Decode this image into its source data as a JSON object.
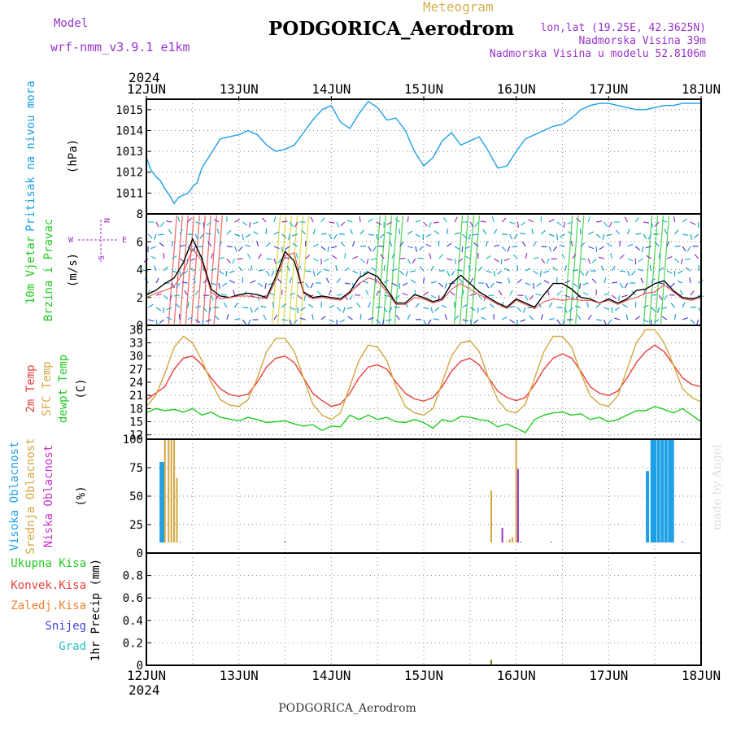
{
  "header": {
    "model_label": "Model",
    "model_name": "wrf-nmm_v3.9.1  e1km",
    "title_small": "Meteogram",
    "station": "PODGORICA_Aerodrom",
    "coords": "lon,lat (19.25E, 42.3625N)",
    "elevation": "Nadmorska Visina 39m",
    "model_elevation": "Nadmorska Visina u modelu 52.8106m",
    "year": "2024"
  },
  "footer": {
    "station": "PODGORICA_Aerodrom",
    "watermark": "made by Angel"
  },
  "colors": {
    "pressure": "#1ea0e6",
    "red": "#e8403c",
    "orange": "#d4a640",
    "green": "#22cc22",
    "magenta": "#cc33cc",
    "purple": "#9933cc",
    "blue": "#4444dd",
    "cyan": "#22c0c0",
    "orange_label": "#f08030",
    "olive": "#808000",
    "grid": "#888888"
  },
  "x_axis": {
    "ticks": [
      "12JUN",
      "13JUN",
      "14JUN",
      "15JUN",
      "16JUN",
      "17JUN",
      "18JUN"
    ],
    "year": "2024"
  },
  "chart_data": [
    {
      "type": "line",
      "panel": "pressure",
      "ylabel": [
        "Pritisak na nivou mora",
        "(hPa)"
      ],
      "ylim": [
        1010,
        1015.5
      ],
      "yticks": [
        1011,
        1012,
        1013,
        1014,
        1015
      ],
      "grid": true,
      "series": [
        {
          "key": "mslp",
          "x": [
            0,
            0.05,
            0.1,
            0.15,
            0.2,
            0.25,
            0.3,
            0.35,
            0.4,
            0.45,
            0.5,
            0.55,
            0.6,
            0.7,
            0.8,
            0.9,
            1.0,
            1.1,
            1.2,
            1.3,
            1.4,
            1.5,
            1.6,
            1.7,
            1.8,
            1.9,
            2.0,
            2.1,
            2.2,
            2.3,
            2.4,
            2.5,
            2.6,
            2.7,
            2.8,
            2.9,
            3.0,
            3.1,
            3.2,
            3.3,
            3.4,
            3.5,
            3.6,
            3.7,
            3.8,
            3.9,
            4.0,
            4.1,
            4.2,
            4.3,
            4.4,
            4.5,
            4.6,
            4.7,
            4.8,
            4.9,
            5.0,
            5.1,
            5.2,
            5.3,
            5.4,
            5.5,
            5.6,
            5.7,
            5.8,
            5.9,
            6.0
          ],
          "values": [
            1012.7,
            1012.1,
            1011.8,
            1011.6,
            1011.2,
            1010.9,
            1010.5,
            1010.8,
            1010.9,
            1011.0,
            1011.3,
            1011.5,
            1012.2,
            1012.9,
            1013.6,
            1013.7,
            1013.8,
            1014.0,
            1013.8,
            1013.3,
            1013.0,
            1013.1,
            1013.3,
            1013.9,
            1014.5,
            1015.0,
            1015.2,
            1014.4,
            1014.1,
            1014.8,
            1015.4,
            1015.1,
            1014.5,
            1014.6,
            1014.0,
            1013.0,
            1012.3,
            1012.7,
            1013.5,
            1013.9,
            1013.3,
            1013.5,
            1013.7,
            1013.0,
            1012.2,
            1012.3,
            1013.0,
            1013.6,
            1013.8,
            1014.0,
            1014.2,
            1014.3,
            1014.6,
            1015.0,
            1015.2,
            1015.3,
            1015.3,
            1015.2,
            1015.1,
            1015.0,
            1015.0,
            1015.1,
            1015.2,
            1015.2,
            1015.3,
            1015.3,
            1015.3
          ]
        }
      ]
    },
    {
      "type": "line",
      "panel": "wind",
      "ylabel": [
        "10m Vjetar",
        "Brzina i Pravac",
        "(m/s)"
      ],
      "compass": [
        "N",
        "W",
        "E",
        "S"
      ],
      "ylim": [
        0,
        8
      ],
      "yticks": [
        0,
        2,
        4,
        6,
        8
      ],
      "grid": true,
      "series": [
        {
          "key": "speed",
          "x": [
            0,
            0.1,
            0.2,
            0.3,
            0.4,
            0.5,
            0.6,
            0.7,
            0.8,
            0.9,
            1.0,
            1.1,
            1.2,
            1.3,
            1.4,
            1.5,
            1.6,
            1.7,
            1.8,
            1.9,
            2.0,
            2.1,
            2.2,
            2.3,
            2.4,
            2.5,
            2.6,
            2.7,
            2.8,
            2.9,
            3.0,
            3.1,
            3.2,
            3.3,
            3.4,
            3.5,
            3.6,
            3.7,
            3.8,
            3.9,
            4.0,
            4.1,
            4.2,
            4.3,
            4.4,
            4.5,
            4.6,
            4.7,
            4.8,
            4.9,
            5.0,
            5.1,
            5.2,
            5.3,
            5.4,
            5.5,
            5.6,
            5.7,
            5.8,
            5.9,
            6.0
          ],
          "values": [
            2.2,
            2.5,
            3.0,
            3.4,
            4.5,
            6.2,
            4.8,
            2.6,
            2.1,
            2.0,
            2.2,
            2.3,
            2.2,
            2.0,
            3.5,
            5.3,
            4.6,
            2.4,
            2.0,
            2.1,
            2.0,
            1.9,
            2.4,
            3.4,
            3.8,
            3.5,
            2.6,
            1.6,
            1.6,
            2.2,
            2.0,
            1.7,
            1.9,
            3.0,
            3.6,
            3.0,
            2.4,
            2.0,
            1.6,
            1.3,
            1.9,
            1.6,
            1.3,
            2.2,
            3.0,
            3.0,
            2.6,
            2.0,
            1.9,
            1.6,
            1.9,
            1.6,
            1.9,
            2.5,
            2.6,
            3.0,
            3.2,
            2.5,
            2.0,
            1.9,
            2.1
          ]
        },
        {
          "key": "gust",
          "x": [
            0,
            0.1,
            0.2,
            0.3,
            0.4,
            0.5,
            0.6,
            0.7,
            0.8,
            0.9,
            1.0,
            1.1,
            1.2,
            1.3,
            1.4,
            1.5,
            1.6,
            1.7,
            1.8,
            1.9,
            2.0,
            2.1,
            2.2,
            2.3,
            2.4,
            2.5,
            2.6,
            2.7,
            2.8,
            2.9,
            3.0,
            3.1,
            3.2,
            3.3,
            3.4,
            3.5,
            3.6,
            3.7,
            3.8,
            3.9,
            4.0,
            4.1,
            4.2,
            4.3,
            4.4,
            4.5,
            4.6,
            4.7,
            4.8,
            4.9,
            5.0,
            5.1,
            5.2,
            5.3,
            5.4,
            5.5,
            5.6,
            5.7,
            5.8,
            5.9,
            6.0
          ],
          "values": [
            2.0,
            2.3,
            2.5,
            2.8,
            3.8,
            5.5,
            4.6,
            2.4,
            1.9,
            2.0,
            2.1,
            2.1,
            2.0,
            1.9,
            3.2,
            5.0,
            5.2,
            2.3,
            1.9,
            2.0,
            1.9,
            1.8,
            2.3,
            3.0,
            3.4,
            3.2,
            2.4,
            1.5,
            1.5,
            2.0,
            1.9,
            1.6,
            1.8,
            2.6,
            3.0,
            2.6,
            2.2,
            1.9,
            1.5,
            1.2,
            1.8,
            1.5,
            1.2,
            1.7,
            1.9,
            1.8,
            1.9,
            1.8,
            1.8,
            1.6,
            1.8,
            1.5,
            1.8,
            2.0,
            2.3,
            2.4,
            2.9,
            2.4,
            1.9,
            1.8,
            2.0
          ]
        }
      ]
    },
    {
      "type": "line",
      "panel": "temperature",
      "ylabel": [
        "2m Temp",
        "SFC Temp",
        "dewpt Temp",
        "(C)"
      ],
      "ylim": [
        11,
        37
      ],
      "yticks": [
        12,
        15,
        18,
        21,
        24,
        27,
        30,
        33,
        36
      ],
      "grid": true,
      "series": [
        {
          "key": "t2m",
          "x": [
            0,
            0.1,
            0.2,
            0.3,
            0.4,
            0.5,
            0.6,
            0.7,
            0.8,
            0.9,
            1.0,
            1.1,
            1.2,
            1.3,
            1.4,
            1.5,
            1.6,
            1.7,
            1.8,
            1.9,
            2.0,
            2.1,
            2.2,
            2.3,
            2.4,
            2.5,
            2.6,
            2.7,
            2.8,
            2.9,
            3.0,
            3.1,
            3.2,
            3.3,
            3.4,
            3.5,
            3.6,
            3.7,
            3.8,
            3.9,
            4.0,
            4.1,
            4.2,
            4.3,
            4.4,
            4.5,
            4.6,
            4.7,
            4.8,
            4.9,
            5.0,
            5.1,
            5.2,
            5.3,
            5.4,
            5.5,
            5.6,
            5.7,
            5.8,
            5.9,
            6.0
          ],
          "values": [
            20,
            21.5,
            23,
            27,
            29.5,
            30,
            28,
            25,
            22.5,
            21.2,
            20.8,
            21.3,
            24,
            27.5,
            29.5,
            30,
            28.5,
            25,
            21.5,
            19.8,
            18.5,
            19,
            21.5,
            25,
            27.5,
            28,
            27,
            24,
            21.5,
            20.2,
            19.7,
            20.5,
            23,
            26.5,
            28.8,
            29.5,
            28,
            25,
            22,
            20.5,
            19.8,
            20.5,
            23.5,
            27,
            29.5,
            30.5,
            29.5,
            26.5,
            23,
            21.5,
            21,
            22,
            25,
            28.5,
            31,
            32.5,
            31,
            28,
            25,
            23.5,
            23
          ]
        },
        {
          "key": "tsfc",
          "x": [
            0,
            0.1,
            0.2,
            0.3,
            0.4,
            0.5,
            0.6,
            0.7,
            0.8,
            0.9,
            1.0,
            1.1,
            1.2,
            1.3,
            1.4,
            1.5,
            1.6,
            1.7,
            1.8,
            1.9,
            2.0,
            2.1,
            2.2,
            2.3,
            2.4,
            2.5,
            2.6,
            2.7,
            2.8,
            2.9,
            3.0,
            3.1,
            3.2,
            3.3,
            3.4,
            3.5,
            3.6,
            3.7,
            3.8,
            3.9,
            4.0,
            4.1,
            4.2,
            4.3,
            4.4,
            4.5,
            4.6,
            4.7,
            4.8,
            4.9,
            5.0,
            5.1,
            5.2,
            5.3,
            5.4,
            5.5,
            5.6,
            5.7,
            5.8,
            5.9,
            6.0
          ],
          "values": [
            18.5,
            21,
            26,
            32,
            34.5,
            33,
            29,
            24,
            20,
            18.8,
            18.5,
            20,
            25,
            31,
            34,
            34,
            31,
            25,
            19,
            16.5,
            15.5,
            17,
            23,
            29,
            32.5,
            32,
            29,
            23,
            18.5,
            17,
            16.5,
            18,
            24,
            30,
            33,
            33.5,
            31,
            25,
            20,
            17.5,
            17,
            19,
            25,
            31,
            34.5,
            34.5,
            32,
            26,
            21,
            19,
            18.5,
            21,
            27,
            33,
            36,
            36,
            33,
            28,
            22.5,
            20.5,
            19.5
          ]
        },
        {
          "key": "tdew",
          "x": [
            0,
            0.1,
            0.2,
            0.3,
            0.4,
            0.5,
            0.6,
            0.7,
            0.8,
            0.9,
            1.0,
            1.1,
            1.2,
            1.3,
            1.4,
            1.5,
            1.6,
            1.7,
            1.8,
            1.9,
            2.0,
            2.1,
            2.2,
            2.3,
            2.4,
            2.5,
            2.6,
            2.7,
            2.8,
            2.9,
            3.0,
            3.1,
            3.2,
            3.3,
            3.4,
            3.5,
            3.6,
            3.7,
            3.8,
            3.9,
            4.0,
            4.1,
            4.2,
            4.3,
            4.4,
            4.5,
            4.6,
            4.7,
            4.8,
            4.9,
            5.0,
            5.1,
            5.2,
            5.3,
            5.4,
            5.5,
            5.6,
            5.7,
            5.8,
            5.9,
            6.0
          ],
          "values": [
            17,
            18,
            17.5,
            17.8,
            17.2,
            18,
            16.5,
            17.2,
            16,
            15.6,
            15.2,
            16,
            15.5,
            14.8,
            15,
            15.2,
            14.5,
            14,
            14.3,
            13,
            14,
            13.8,
            16.5,
            15.5,
            16.5,
            15.5,
            16,
            15,
            14.8,
            15.5,
            14.8,
            13.5,
            15.5,
            15,
            16.2,
            16,
            15.5,
            15.2,
            13.8,
            14.5,
            13.5,
            12.5,
            15.5,
            16.5,
            17,
            17.2,
            16.5,
            16.8,
            15.5,
            16,
            15,
            15.5,
            16.5,
            17.5,
            17.5,
            18.5,
            17.8,
            17,
            18,
            16.5,
            15
          ]
        }
      ]
    },
    {
      "type": "bar",
      "panel": "cloud",
      "ylabel": [
        "Visoka Oblacnost",
        "Srednja Oblacnost",
        "Niska Oblacnost",
        "(%)"
      ],
      "ylim": [
        0,
        100
      ],
      "yticks": [
        0,
        25,
        50,
        75,
        100
      ],
      "grid": true,
      "series": [
        {
          "key": "high",
          "x": [
            0.16,
            0.18,
            5.42,
            5.47,
            5.5,
            5.54,
            5.58,
            5.62,
            5.66,
            5.69
          ],
          "values": [
            80,
            80,
            72,
            100,
            100,
            100,
            100,
            100,
            100,
            100
          ]
        },
        {
          "key": "mid",
          "x": [
            0.2,
            0.24,
            0.27,
            0.3,
            0.33,
            0.37,
            3.73,
            3.9,
            3.93,
            3.96,
            4.0
          ],
          "values": [
            100,
            100,
            100,
            100,
            66,
            10,
            55,
            10,
            12,
            14,
            100
          ]
        },
        {
          "key": "low",
          "x": [
            1.5,
            3.85,
            4.02,
            4.05,
            4.38,
            5.8
          ],
          "values": [
            10,
            22,
            74,
            10,
            10,
            10
          ]
        }
      ]
    },
    {
      "type": "bar",
      "panel": "precip",
      "ylabel": [
        "1hr Precip (mm)"
      ],
      "legend_labels": [
        "Ukupna Kisa",
        "Konvek.Kisa",
        "Zaledj.Kisa",
        "Snijeg",
        "Grad"
      ],
      "ylim": [
        0,
        1
      ],
      "yticks": [
        0,
        0.2,
        0.4,
        0.6,
        0.8
      ],
      "grid": true,
      "series": [
        {
          "key": "total",
          "x": [
            3.73
          ],
          "values": [
            0.05
          ]
        }
      ]
    }
  ]
}
